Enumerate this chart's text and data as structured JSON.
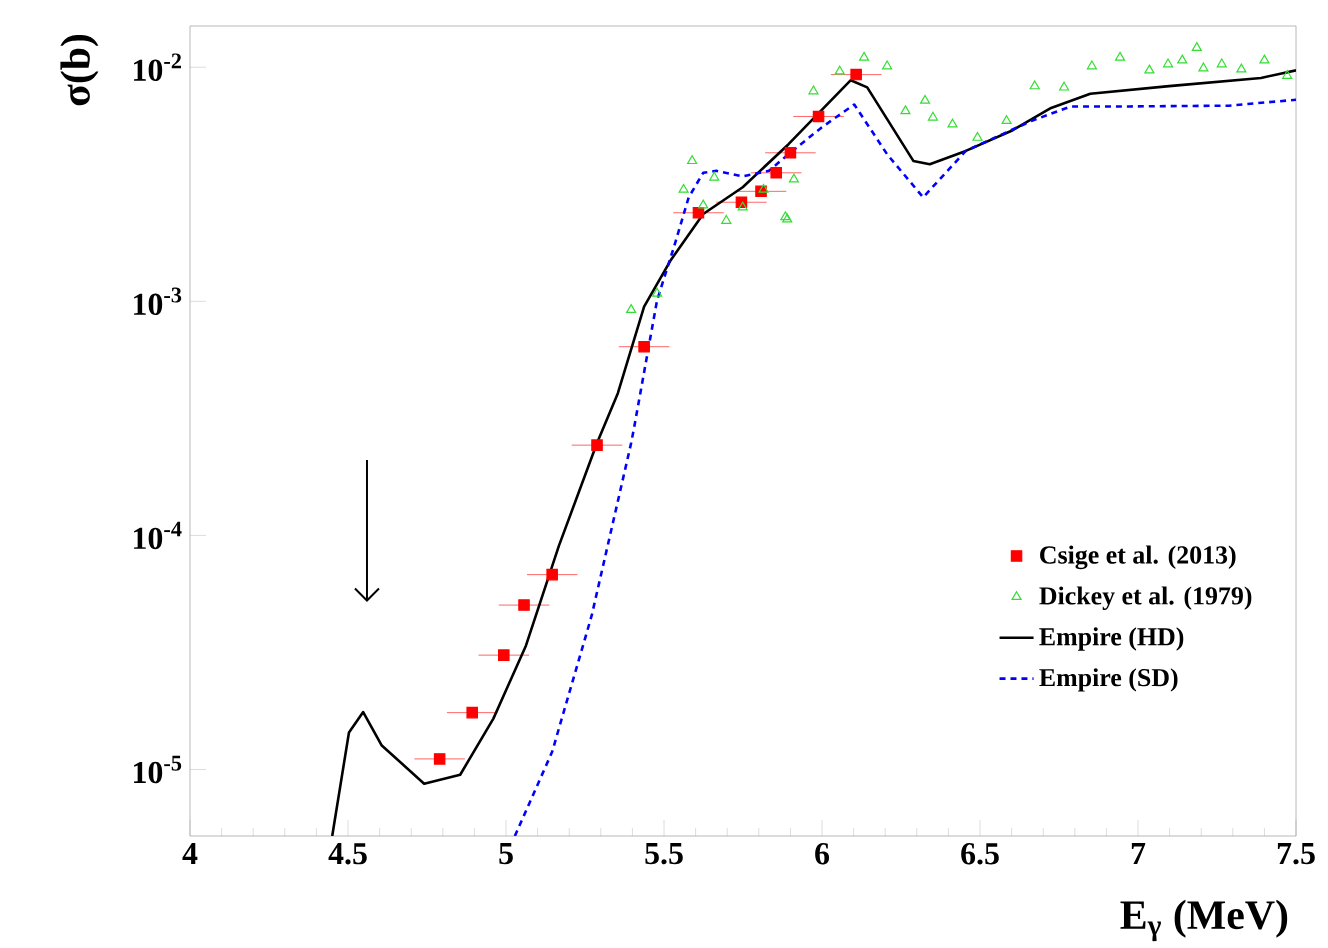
{
  "chart_data": {
    "type": "scatter",
    "xlabel": "E$_{γ}$ (MeV)",
    "ylabel": "σ(b)",
    "log": "y",
    "legend": "right",
    "grid": false,
    "xlim": [
      4,
      7.5
    ],
    "ylim": [
      5.2e-06,
      0.015
    ],
    "xticks": [
      4,
      4.5,
      5,
      5.5,
      6,
      6.5,
      7,
      7.5
    ],
    "yticks": [
      {
        "value": 1e-05,
        "label": "10$^{-5}$"
      },
      {
        "value": 0.0001,
        "label": "10$^{-4}$"
      },
      {
        "value": 0.001,
        "label": "10$^{-3}$"
      },
      {
        "value": 0.01,
        "label": "10$^{-2}$"
      }
    ],
    "series": [
      {
        "name": "Csige et al. (2013)",
        "marker": "square",
        "color": "#ff0000",
        "x": [
          4.79,
          4.893,
          4.993,
          5.057,
          5.146,
          5.288,
          5.437,
          5.609,
          5.745,
          5.807,
          5.855,
          5.9,
          5.989,
          6.108
        ],
        "values": [
          1.11e-05,
          1.75e-05,
          3.08e-05,
          5.04e-05,
          6.8e-05,
          0.000243,
          0.00064,
          0.00239,
          0.00265,
          0.00295,
          0.00354,
          0.00431,
          0.00616,
          0.0093
        ],
        "xerrors": [
          0.08,
          0.08,
          0.08,
          0.08,
          0.08,
          0.08,
          0.08,
          0.08,
          0.08,
          0.08,
          0.08,
          0.08,
          0.08,
          0.08
        ]
      },
      {
        "name": "Dickey et al. (1979)",
        "marker": "triangle",
        "color": "#33dd33",
        "x": [
          5.396,
          5.478,
          5.562,
          5.589,
          5.624,
          5.659,
          5.697,
          5.749,
          5.815,
          5.884,
          5.89,
          5.911,
          5.973,
          6.056,
          6.133,
          6.206,
          6.264,
          6.326,
          6.351,
          6.413,
          6.492,
          6.584,
          6.673,
          6.766,
          6.854,
          6.943,
          7.036,
          7.095,
          7.14,
          7.186,
          7.207,
          7.265,
          7.327,
          7.4,
          7.472
        ],
        "values": [
          0.00092,
          0.00108,
          0.003,
          0.00398,
          0.00257,
          0.00338,
          0.00221,
          0.00252,
          0.003,
          0.00229,
          0.00224,
          0.00332,
          0.0079,
          0.0096,
          0.011,
          0.0101,
          0.0065,
          0.0072,
          0.0061,
          0.0057,
          0.005,
          0.0059,
          0.0083,
          0.0082,
          0.0101,
          0.011,
          0.0097,
          0.0103,
          0.0107,
          0.0121,
          0.0099,
          0.0103,
          0.0098,
          0.0107,
          0.0092
        ]
      },
      {
        "name": "Empire (HD)",
        "type": "line",
        "line_style": "solid",
        "color": "#000000",
        "x": [
          4.45,
          4.503,
          4.548,
          4.606,
          4.741,
          4.855,
          4.96,
          5.063,
          5.167,
          5.288,
          5.354,
          5.437,
          5.52,
          5.624,
          5.749,
          5.894,
          6.091,
          6.143,
          6.289,
          6.341,
          6.455,
          6.6,
          6.725,
          6.849,
          7.098,
          7.389,
          7.5
        ],
        "values": [
          5.2e-06,
          1.44e-05,
          1.76e-05,
          1.27e-05,
          8.7e-06,
          9.5e-06,
          1.65e-05,
          3.38e-05,
          9e-05,
          0.000248,
          0.000405,
          0.00095,
          0.00149,
          0.00236,
          0.00307,
          0.00469,
          0.0088,
          0.0082,
          0.00398,
          0.00385,
          0.00439,
          0.00535,
          0.0067,
          0.0077,
          0.0083,
          0.009,
          0.0097
        ]
      },
      {
        "name": "Empire (SD)",
        "type": "line",
        "line_style": "dashed",
        "color": "#0000ff",
        "x": [
          5.028,
          5.146,
          5.271,
          5.396,
          5.406,
          5.478,
          5.531,
          5.578,
          5.624,
          5.665,
          5.749,
          5.832,
          5.894,
          5.998,
          6.102,
          6.206,
          6.32,
          6.455,
          6.662,
          6.787,
          6.974,
          7.286,
          7.5
        ],
        "values": [
          5.2e-06,
          1.19e-05,
          4.54e-05,
          0.000248,
          0.000292,
          0.00101,
          0.0017,
          0.00278,
          0.00354,
          0.00361,
          0.00342,
          0.00361,
          0.00425,
          0.00552,
          0.00693,
          0.00425,
          0.00278,
          0.00439,
          0.00589,
          0.0068,
          0.0068,
          0.00685,
          0.00726
        ]
      }
    ]
  }
}
